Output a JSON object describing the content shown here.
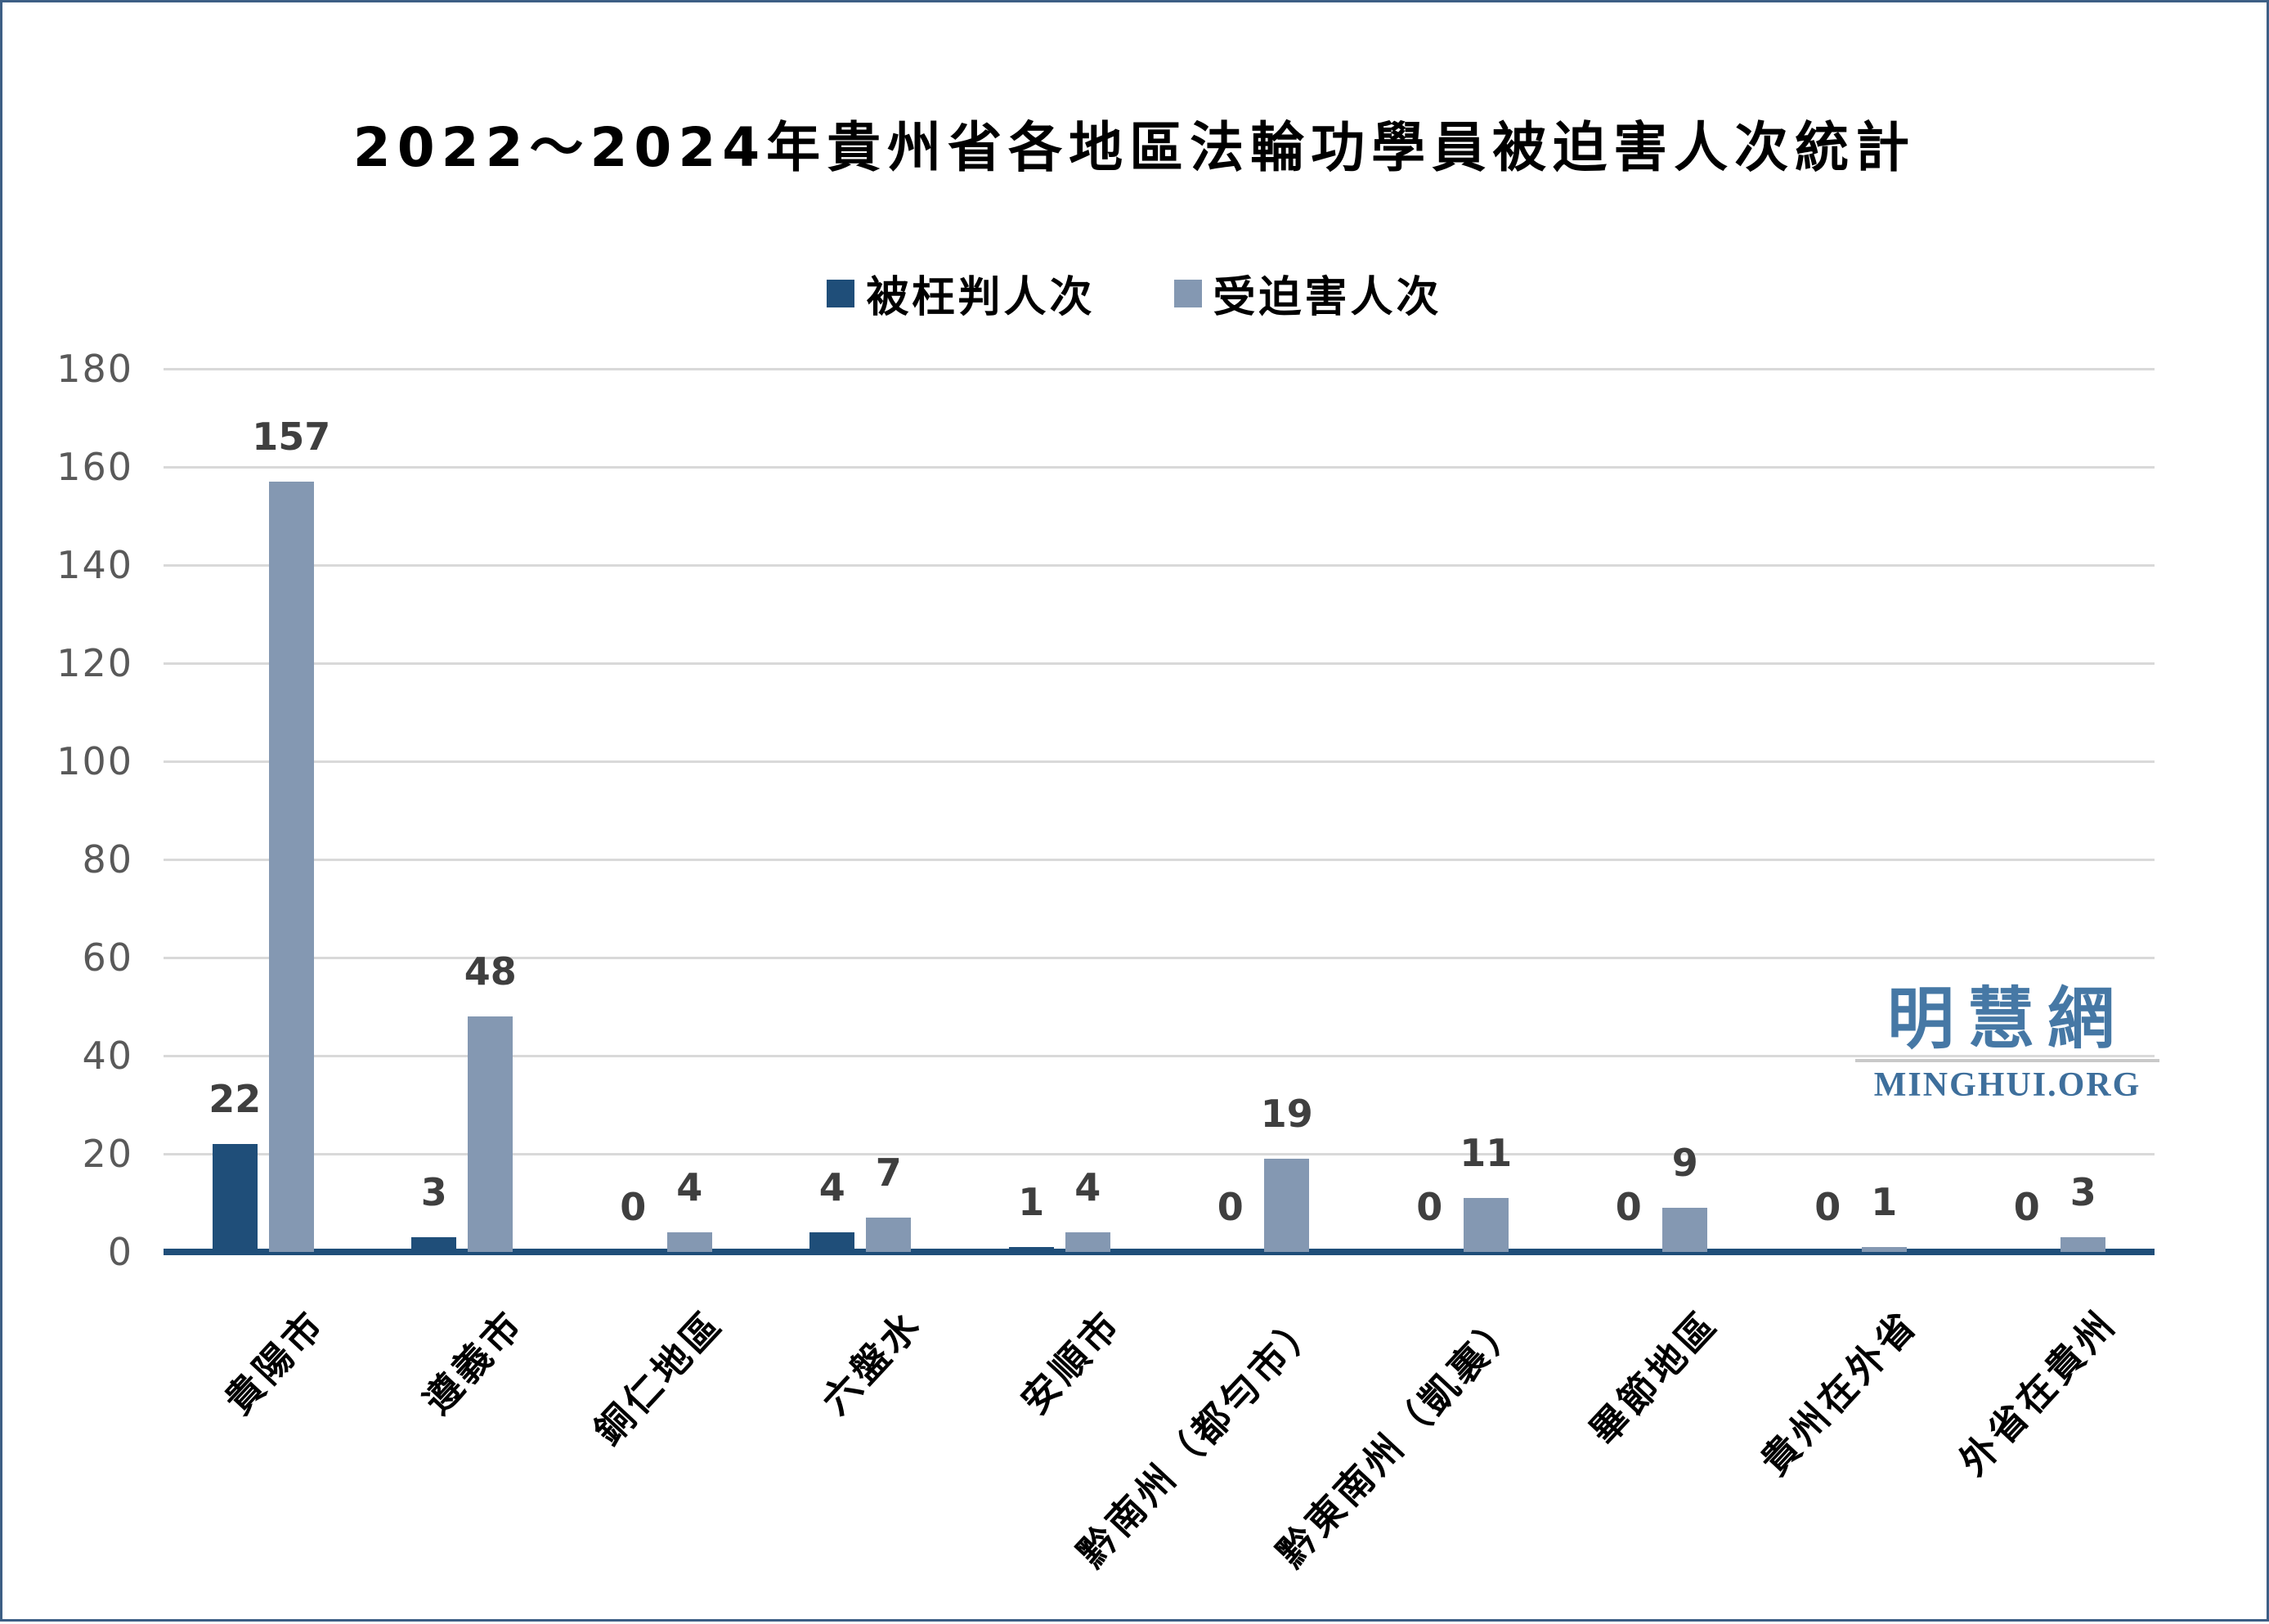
{
  "title": "2022～2024年貴州省各地區法輪功學員被迫害人次統計",
  "watermark": {
    "cjk": "明慧網",
    "latin": "MINGHUI.ORG"
  },
  "colors": {
    "bar_dark": "#1F4E79",
    "bar_light": "#8498B2",
    "axis": "#1F4E79",
    "grid": "#D9D9D9",
    "tick_text": "#595959",
    "value_label_text": "#3F3F3F",
    "watermark_cjk": "#4678A5",
    "watermark_latin": "#3E6F9C",
    "border": "#3D5F85"
  },
  "chart_data": {
    "type": "bar",
    "title": "2022～2024年貴州省各地區法輪功學員被迫害人次統計",
    "categories": [
      "貴陽市",
      "遵義市",
      "銅仁地區",
      "六盤水",
      "安順市",
      "黔南州（都勻市）",
      "黔東南州（凱裏）",
      "畢節地區",
      "貴州在外省",
      "外省在貴州"
    ],
    "series": [
      {
        "name": "被枉判人次",
        "color": "#1F4E79",
        "values": [
          22,
          3,
          0,
          4,
          1,
          0,
          0,
          0,
          0,
          0
        ]
      },
      {
        "name": "受迫害人次",
        "color": "#8498B2",
        "values": [
          157,
          48,
          4,
          7,
          4,
          19,
          11,
          9,
          1,
          3
        ]
      }
    ],
    "ylim": [
      0,
      180
    ],
    "yticks": [
      0,
      20,
      40,
      60,
      80,
      100,
      120,
      140,
      160,
      180
    ],
    "grid": true,
    "legend_position": "top",
    "xlabel": "",
    "ylabel": ""
  }
}
